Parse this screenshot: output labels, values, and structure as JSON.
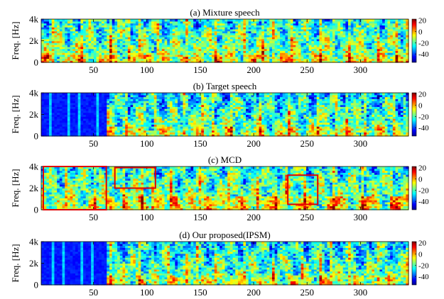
{
  "chart_data": [
    {
      "type": "heatmap",
      "title": "(a) Mixture speech",
      "ylabel": "Freq. [Hz]",
      "xlim": [
        1,
        345
      ],
      "ylim": [
        0,
        4000
      ],
      "xticks": [
        "50",
        "100",
        "150",
        "200",
        "250",
        "300"
      ],
      "yticks": [
        "0",
        "2k",
        "4k"
      ],
      "colorbar": {
        "ticks": [
          "20",
          "0",
          "-20",
          "-40"
        ],
        "range": [
          -55,
          22
        ]
      },
      "highlight_regions": []
    },
    {
      "type": "heatmap",
      "title": "(b) Target speech",
      "ylabel": "Freq. [Hz]",
      "xlim": [
        1,
        345
      ],
      "ylim": [
        0,
        4000
      ],
      "xticks": [
        "50",
        "100",
        "150",
        "200",
        "250",
        "300"
      ],
      "yticks": [
        "0",
        "2k",
        "4k"
      ],
      "colorbar": {
        "ticks": [
          "20",
          "0",
          "-20",
          "-40"
        ],
        "range": [
          -55,
          22
        ]
      },
      "highlight_regions": []
    },
    {
      "type": "heatmap",
      "title": "(c) MCD",
      "ylabel": "Freq. [Hz]",
      "xlim": [
        1,
        345
      ],
      "ylim": [
        0,
        4000
      ],
      "xticks": [
        "50",
        "100",
        "150",
        "200",
        "250",
        "300"
      ],
      "yticks": [
        "0",
        "2k",
        "4k"
      ],
      "colorbar": {
        "ticks": [
          "20",
          "0",
          "-20",
          "-40"
        ],
        "range": [
          -55,
          22
        ]
      },
      "highlight_regions": [
        {
          "x": [
            3,
            62
          ],
          "y": [
            0,
            4000
          ]
        },
        {
          "x": [
            70,
            108
          ],
          "y": [
            2000,
            3900
          ]
        },
        {
          "x": [
            232,
            260
          ],
          "y": [
            500,
            3200
          ]
        }
      ]
    },
    {
      "type": "heatmap",
      "title": "(d) Our proposed(IPSM)",
      "ylabel": "Freq. [Hz]",
      "xlim": [
        1,
        345
      ],
      "ylim": [
        0,
        4000
      ],
      "xticks": [
        "50",
        "100",
        "150",
        "200",
        "250",
        "300"
      ],
      "yticks": [
        "0",
        "2k",
        "4k"
      ],
      "colorbar": {
        "ticks": [
          "20",
          "0",
          "-20",
          "-40"
        ],
        "range": [
          -55,
          22
        ]
      },
      "highlight_regions": []
    }
  ]
}
